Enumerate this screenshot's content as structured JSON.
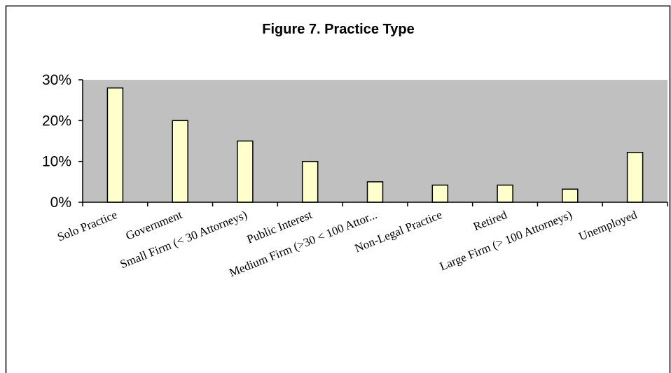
{
  "chart_data": {
    "type": "bar",
    "title": "Figure 7.  Practice Type",
    "xlabel": "",
    "ylabel": "",
    "categories": [
      "Solo Practice",
      "Government",
      "Small Firm (< 30 Attorneys)",
      "Public Interest",
      "Medium Firm (>30 < 100 Attor...",
      "Non-Legal Practice",
      "Retired",
      "Large Firm (> 100 Attorneys)",
      "Unemployed"
    ],
    "values": [
      28,
      20,
      15,
      10,
      5,
      4.2,
      4.2,
      3.2,
      12.2
    ],
    "ylim": [
      0,
      30
    ],
    "yticks": [
      0,
      10,
      20,
      30
    ],
    "ytick_labels": [
      "0%",
      "10%",
      "20%",
      "30%"
    ],
    "grid": false,
    "legend": "none",
    "colors": {
      "plot_background": "#c0c0c0",
      "bar_fill": "#ffffcc",
      "bar_stroke": "#000000",
      "axis": "#000000"
    }
  }
}
